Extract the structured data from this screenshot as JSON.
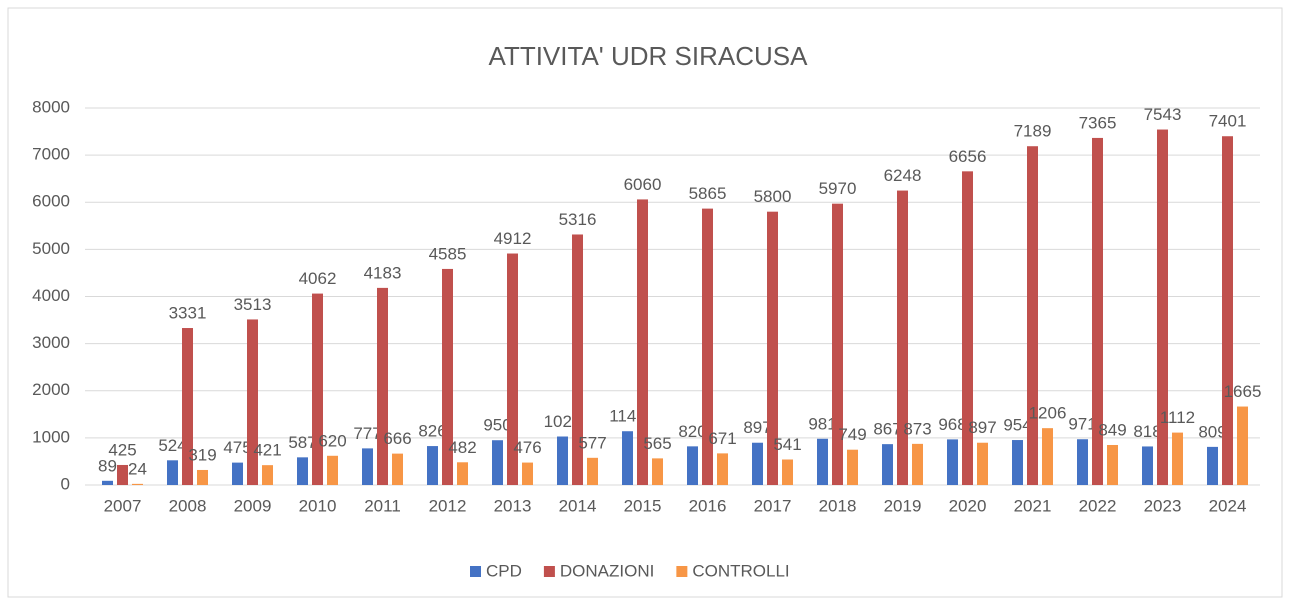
{
  "chart_data": {
    "type": "bar",
    "title": "ATTIVITA' UDR SIRACUSA",
    "categories": [
      "2007",
      "2008",
      "2009",
      "2010",
      "2011",
      "2012",
      "2013",
      "2014",
      "2015",
      "2016",
      "2017",
      "2018",
      "2019",
      "2020",
      "2021",
      "2022",
      "2023",
      "2024"
    ],
    "series": [
      {
        "name": "CPD",
        "color": "#4472c4",
        "values": [
          89,
          524,
          475,
          587,
          777,
          826,
          950,
          1029,
          1141,
          820,
          897,
          981,
          867,
          968,
          954,
          971,
          818,
          809
        ]
      },
      {
        "name": "DONAZIONI",
        "color": "#c0504d",
        "values": [
          425,
          3331,
          3513,
          4062,
          4183,
          4585,
          4912,
          5316,
          6060,
          5865,
          5800,
          5970,
          6248,
          6656,
          7189,
          7365,
          7543,
          7401
        ]
      },
      {
        "name": "CONTROLLI",
        "color": "#f79646",
        "values": [
          24,
          319,
          421,
          620,
          666,
          482,
          476,
          577,
          565,
          671,
          541,
          749,
          873,
          897,
          1206,
          849,
          1112,
          1665
        ]
      }
    ],
    "ylim": [
      0,
      8000
    ],
    "yticks": [
      0,
      1000,
      2000,
      3000,
      4000,
      5000,
      6000,
      7000,
      8000
    ],
    "grid": true,
    "legend": "bottom"
  }
}
